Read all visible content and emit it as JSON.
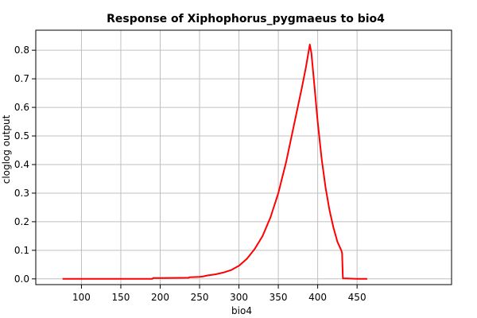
{
  "chart_data": {
    "type": "line",
    "title": "Response of Xiphophorus_pygmaeus to bio4",
    "xlabel": "bio4",
    "ylabel": "cloglog output",
    "xlim": [
      42,
      570
    ],
    "ylim": [
      -0.02,
      0.87
    ],
    "x_ticks": [
      100,
      150,
      200,
      250,
      300,
      350,
      400,
      450
    ],
    "y_ticks": [
      0.0,
      0.1,
      0.2,
      0.3,
      0.4,
      0.5,
      0.6,
      0.7,
      0.8
    ],
    "y_tick_labels": [
      "0.0",
      "0.1",
      "0.2",
      "0.3",
      "0.4",
      "0.5",
      "0.6",
      "0.7",
      "0.8"
    ],
    "grid": true,
    "series": [
      {
        "color": "#ff0000",
        "x": [
          76,
          100,
          150,
          190,
          191,
          200,
          236,
          237,
          250,
          255,
          260,
          270,
          280,
          290,
          300,
          310,
          320,
          330,
          340,
          350,
          360,
          370,
          380,
          385,
          390,
          392,
          395,
          400,
          405,
          410,
          415,
          420,
          425,
          430,
          431,
          432,
          440,
          450,
          463
        ],
        "y": [
          0.0,
          0.0,
          0.0,
          0.0,
          0.003,
          0.003,
          0.004,
          0.006,
          0.007,
          0.009,
          0.012,
          0.016,
          0.022,
          0.031,
          0.046,
          0.07,
          0.105,
          0.15,
          0.215,
          0.3,
          0.41,
          0.54,
          0.67,
          0.74,
          0.82,
          0.79,
          0.7,
          0.55,
          0.42,
          0.32,
          0.24,
          0.18,
          0.13,
          0.1,
          0.09,
          0.002,
          0.001,
          0.0,
          0.0
        ]
      }
    ]
  }
}
